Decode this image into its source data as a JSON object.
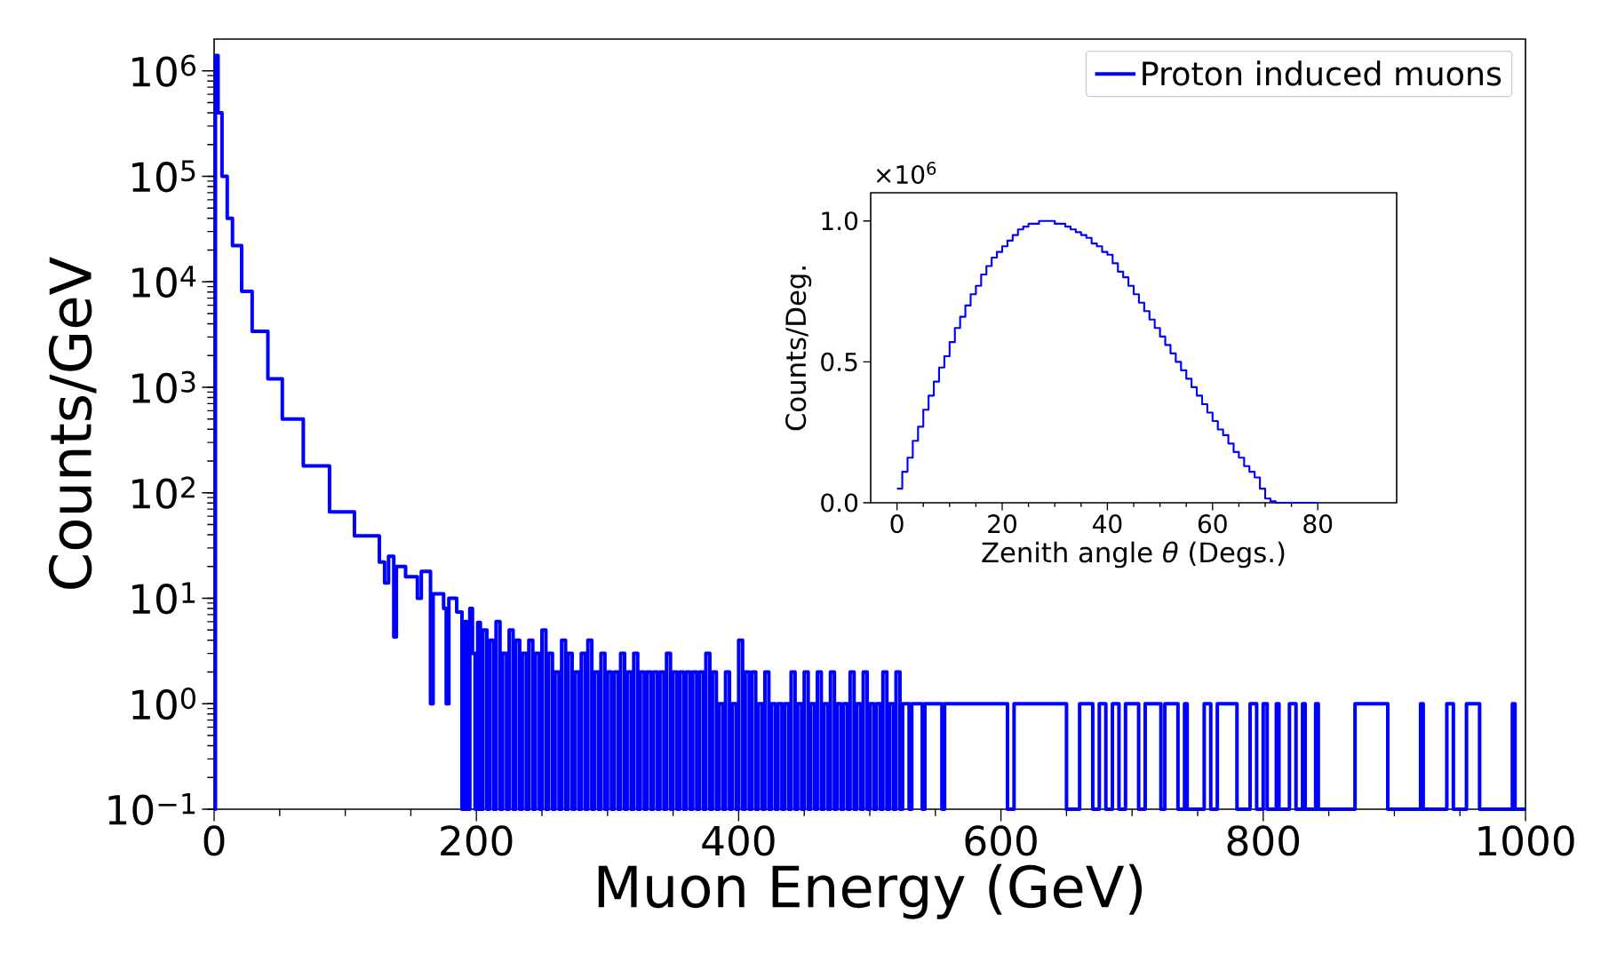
{
  "chart_data": [
    {
      "type": "step",
      "xlabel": "Muon Energy (GeV)",
      "ylabel": "Counts/GeV",
      "log": "y",
      "legend": "top right",
      "xlim": [
        0,
        1000
      ],
      "ylim": [
        0.1,
        2000000
      ],
      "xticks": [
        0,
        200,
        400,
        600,
        800,
        1000
      ],
      "yticks": [
        {
          "value": 0.1,
          "label": "10$^{−1}$"
        },
        {
          "value": 1,
          "label": "10$^{0}$"
        },
        {
          "value": 10,
          "label": "10$^{1}$"
        },
        {
          "value": 100,
          "label": "10$^{2}$"
        },
        {
          "value": 1000,
          "label": "10$^{3}$"
        },
        {
          "value": 10000,
          "label": "10$^{4}$"
        },
        {
          "value": 100000,
          "label": "10$^{5}$"
        },
        {
          "value": 1000000,
          "label": "10$^{6}$"
        }
      ],
      "x": [
        0,
        1,
        3,
        6,
        10,
        14,
        21,
        29,
        41,
        52,
        68,
        88,
        107,
        126,
        130,
        133,
        137,
        139,
        146,
        155,
        158,
        165,
        167,
        175,
        177,
        179,
        185,
        189,
        191,
        193,
        195,
        197,
        199,
        201,
        203,
        205,
        208,
        210,
        213,
        215,
        218,
        220,
        223,
        225,
        228,
        230,
        233,
        235,
        238,
        240,
        243,
        245,
        248,
        250,
        253,
        255,
        258,
        260,
        263,
        265,
        268,
        270,
        273,
        275,
        278,
        280,
        283,
        285,
        288,
        290,
        293,
        295,
        298,
        300,
        303,
        305,
        308,
        310,
        313,
        315,
        318,
        320,
        323,
        325,
        328,
        330,
        333,
        335,
        338,
        340,
        343,
        345,
        348,
        350,
        353,
        355,
        358,
        360,
        363,
        365,
        368,
        370,
        373,
        375,
        378,
        380,
        383,
        385,
        388,
        390,
        393,
        395,
        398,
        400,
        403,
        405,
        408,
        410,
        413,
        415,
        418,
        420,
        423,
        425,
        428,
        430,
        433,
        435,
        438,
        440,
        443,
        445,
        448,
        450,
        453,
        455,
        458,
        460,
        463,
        465,
        468,
        470,
        473,
        475,
        478,
        480,
        483,
        485,
        488,
        490,
        493,
        495,
        498,
        500,
        503,
        505,
        508,
        510,
        513,
        515,
        518,
        520,
        523,
        525,
        530,
        532,
        540,
        542,
        555,
        557,
        605,
        610,
        650,
        660,
        670,
        675,
        680,
        685,
        690,
        695,
        705,
        710,
        722,
        725,
        735,
        740,
        742,
        755,
        760,
        765,
        780,
        790,
        795,
        800,
        803,
        810,
        812,
        820,
        825,
        830,
        832,
        840,
        842,
        870,
        895,
        920,
        922,
        940,
        945,
        955,
        965,
        990,
        992,
        1000
      ],
      "series": [
        {
          "name": "Proton induced muons",
          "color": "#0000ff",
          "values": [
            0.1,
            1400000,
            400000,
            100000,
            40000,
            22000,
            8100,
            3400,
            1200,
            500,
            180,
            66,
            39,
            22,
            14,
            25,
            4.3,
            20,
            16,
            10,
            18,
            1,
            11,
            8,
            1,
            10,
            7.4,
            0.1,
            6,
            0.1,
            8,
            3,
            0.1,
            5.9,
            0.1,
            5,
            0.1,
            4,
            0.1,
            6,
            0.1,
            3,
            0.1,
            5,
            0.1,
            4,
            0.1,
            3,
            0.1,
            4,
            0.1,
            3,
            0.1,
            5,
            0.1,
            3,
            0.1,
            2,
            0.1,
            4,
            0.1,
            3,
            0.1,
            2,
            0.1,
            3,
            0.1,
            4,
            0.1,
            2,
            0.1,
            3,
            0.1,
            2,
            0.1,
            2,
            0.1,
            3,
            0.1,
            2,
            0.1,
            3,
            0.1,
            2,
            0.1,
            2,
            0.1,
            2,
            0.1,
            2,
            0.1,
            3,
            0.1,
            2,
            0.1,
            2,
            0.1,
            2,
            0.1,
            2,
            0.1,
            2,
            0.1,
            3,
            0.1,
            2,
            0.1,
            1,
            0.1,
            2,
            0.1,
            1,
            0.1,
            4,
            0.1,
            2,
            0.1,
            2,
            0.1,
            1,
            0.1,
            2,
            0.1,
            1,
            0.1,
            1,
            0.1,
            1,
            0.1,
            2,
            0.1,
            1,
            0.1,
            2,
            0.1,
            1,
            0.1,
            2,
            0.1,
            1,
            0.1,
            2,
            0.1,
            1,
            0.1,
            1,
            0.1,
            2,
            0.1,
            1,
            0.1,
            2,
            0.1,
            1,
            0.1,
            1,
            0.1,
            2,
            0.1,
            1,
            0.1,
            2,
            0.1,
            1,
            0.1,
            1,
            0.1,
            1,
            0.1,
            1,
            0.1,
            1,
            0.1,
            1,
            0.1,
            1,
            0.1,
            1,
            0.1,
            1,
            0.1,
            1,
            0.1,
            1,
            0.1,
            1,
            0.1,
            1,
            0.1,
            1,
            0.1,
            1,
            0.1,
            1,
            0.1,
            1,
            0.1,
            1,
            0.1,
            1,
            0.1,
            1,
            0.1,
            1,
            0.1,
            1,
            0.1,
            1,
            0.1,
            1,
            0.1,
            1,
            0.1,
            0.1
          ]
        }
      ]
    },
    {
      "type": "step",
      "xlabel": "Zenith angle *θ* (Degs.)",
      "ylabel": "Counts/Deg.",
      "annotations": [
        "×10$^{6}$"
      ],
      "xlim": [
        -5,
        95
      ],
      "ylim": [
        0,
        1.1
      ],
      "xticks": [
        0,
        20,
        40,
        60,
        80
      ],
      "yticks": [
        {
          "value": 0,
          "label": "0.0"
        },
        {
          "value": 0.5,
          "label": "0.5"
        },
        {
          "value": 1,
          "label": "1.0"
        }
      ],
      "x": [
        0,
        1,
        2,
        3,
        4,
        5,
        6,
        7,
        8,
        9,
        10,
        11,
        12,
        13,
        14,
        15,
        16,
        17,
        18,
        19,
        20,
        21,
        22,
        23,
        24,
        25,
        26,
        27,
        28,
        29,
        30,
        31,
        32,
        33,
        34,
        35,
        36,
        37,
        38,
        39,
        40,
        41,
        42,
        43,
        44,
        45,
        46,
        47,
        48,
        49,
        50,
        51,
        52,
        53,
        54,
        55,
        56,
        57,
        58,
        59,
        60,
        61,
        62,
        63,
        64,
        65,
        66,
        67,
        68,
        69,
        70,
        71,
        72,
        80
      ],
      "series": [
        {
          "color": "#0000ff",
          "values": [
            0.05,
            0.11,
            0.16,
            0.22,
            0.27,
            0.33,
            0.38,
            0.43,
            0.48,
            0.52,
            0.57,
            0.62,
            0.66,
            0.7,
            0.74,
            0.77,
            0.81,
            0.84,
            0.87,
            0.89,
            0.91,
            0.93,
            0.95,
            0.97,
            0.98,
            0.99,
            0.99,
            1.0,
            1.0,
            1.0,
            0.99,
            0.99,
            0.98,
            0.97,
            0.96,
            0.95,
            0.94,
            0.92,
            0.91,
            0.89,
            0.88,
            0.85,
            0.82,
            0.8,
            0.77,
            0.74,
            0.71,
            0.68,
            0.65,
            0.62,
            0.59,
            0.56,
            0.53,
            0.5,
            0.47,
            0.44,
            0.41,
            0.38,
            0.35,
            0.32,
            0.29,
            0.26,
            0.24,
            0.21,
            0.18,
            0.16,
            0.13,
            0.11,
            0.09,
            0.05,
            0.015,
            0.005,
            0,
            0
          ]
        }
      ]
    }
  ]
}
